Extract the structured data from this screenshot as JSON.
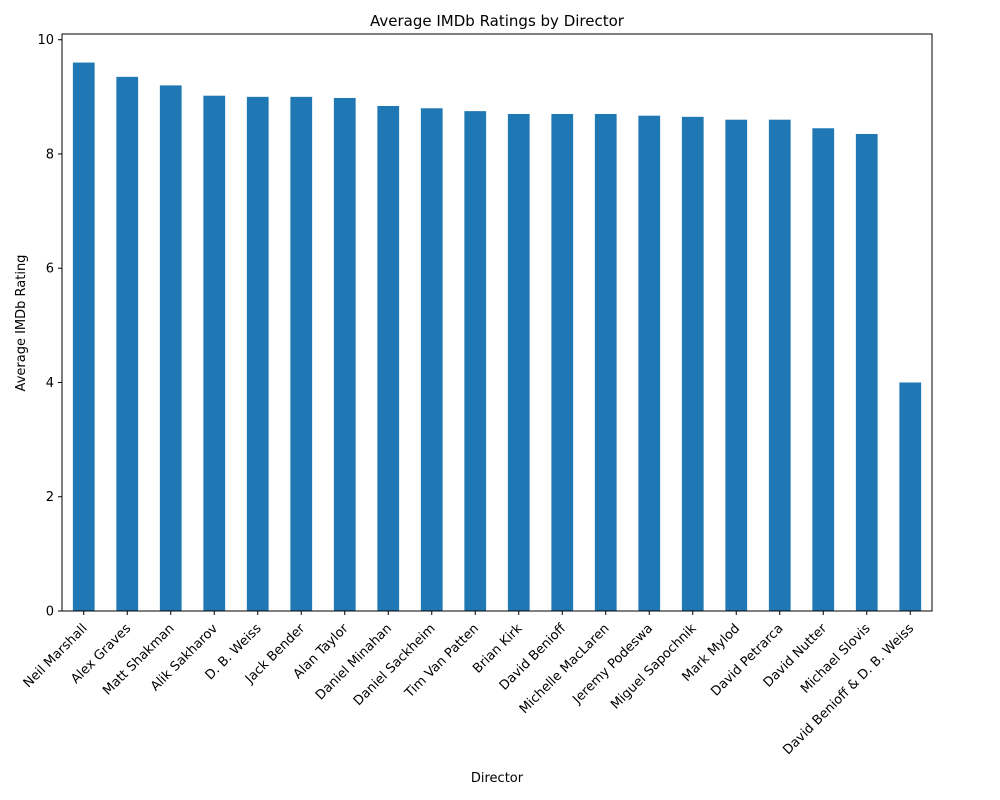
{
  "chart_data": {
    "type": "bar",
    "title": "Average IMDb Ratings by Director",
    "xlabel": "Director",
    "ylabel": "Average IMDb Rating",
    "ylim": [
      0,
      10
    ],
    "yticks": [
      0,
      2,
      4,
      6,
      8,
      10
    ],
    "grid": false,
    "legend": "none",
    "bar_color": "#1f77b4",
    "categories": [
      "Neil Marshall",
      "Alex Graves",
      "Matt Shakman",
      "Alik Sakharov",
      "D. B. Weiss",
      "Jack Bender",
      "Alan Taylor",
      "Daniel Minahan",
      "Daniel Sackheim",
      "Tim Van Patten",
      "Brian Kirk",
      "David Benioff",
      "Michelle MacLaren",
      "Jeremy Podeswa",
      "Miguel Sapochnik",
      "Mark Mylod",
      "David Petrarca",
      "David Nutter",
      "Michael Slovis",
      "David Benioff & D. B. Weiss"
    ],
    "values": [
      9.6,
      9.35,
      9.2,
      9.02,
      9.0,
      9.0,
      8.98,
      8.84,
      8.8,
      8.75,
      8.7,
      8.7,
      8.7,
      8.67,
      8.65,
      8.6,
      8.6,
      8.45,
      8.35,
      4.0
    ]
  }
}
